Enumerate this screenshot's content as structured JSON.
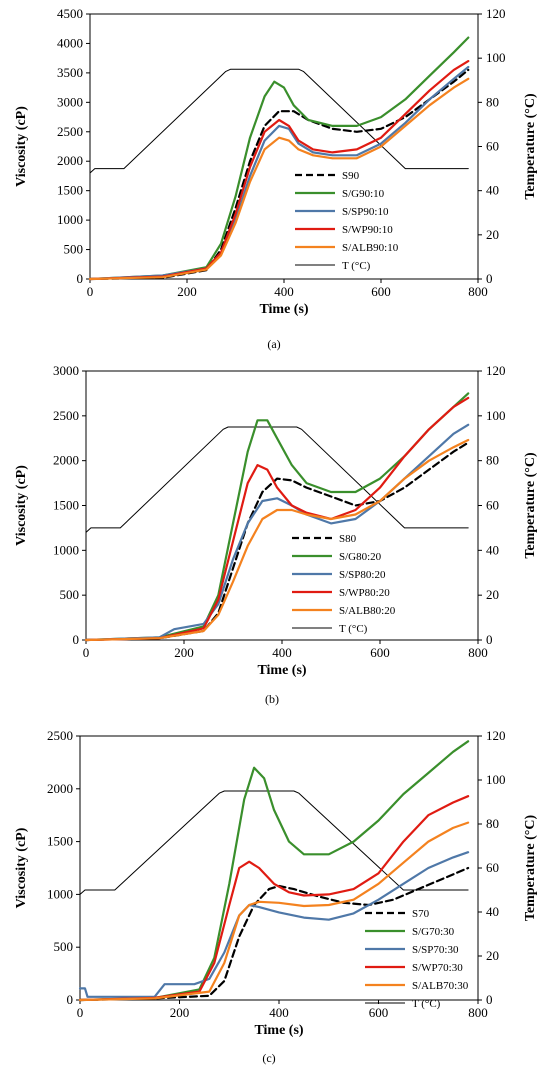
{
  "figure": {
    "charts": [
      {
        "panel_label": "(a)",
        "xlabel": "Time (s)",
        "ylabel": "Viscosity (cP)",
        "y2label": "Temperature (°C)"
      },
      {
        "panel_label": "(b)",
        "xlabel": "Time (s)",
        "ylabel": "Viscosity (cP)",
        "y2label": "Temperature (°C)"
      },
      {
        "panel_label": "(c)",
        "xlabel": "Time (s)",
        "ylabel": "Viscosity (cP)",
        "y2label": "Temperature (°C)"
      }
    ]
  },
  "chart_data": [
    {
      "type": "line",
      "panel_label": "(a)",
      "title": "",
      "xlabel": "Time (s)",
      "ylabel": "Viscosity (cP)",
      "y2label": "Temperature (°C)",
      "xlim": [
        0,
        800
      ],
      "ylim": [
        0,
        4500
      ],
      "y2lim": [
        0,
        120
      ],
      "xticks": [
        0,
        200,
        400,
        600,
        800
      ],
      "yticks": [
        0,
        500,
        1000,
        1500,
        2000,
        2500,
        3000,
        3500,
        4000,
        4500
      ],
      "y2ticks": [
        0,
        20,
        40,
        60,
        80,
        100,
        120
      ],
      "grid": false,
      "legend_position": "center-right",
      "series": [
        {
          "name": "S90",
          "axis": "left",
          "color": "#000000",
          "dash": true,
          "x": [
            0,
            150,
            240,
            270,
            300,
            330,
            360,
            390,
            420,
            450,
            500,
            550,
            600,
            650,
            700,
            750,
            780
          ],
          "y": [
            0,
            20,
            150,
            500,
            1200,
            2000,
            2600,
            2850,
            2850,
            2700,
            2550,
            2500,
            2550,
            2750,
            3050,
            3350,
            3550
          ]
        },
        {
          "name": "S/G90:10",
          "axis": "left",
          "color": "#3a8f2c",
          "dash": false,
          "x": [
            0,
            150,
            240,
            270,
            300,
            330,
            360,
            380,
            400,
            420,
            450,
            500,
            550,
            600,
            650,
            700,
            750,
            780
          ],
          "y": [
            0,
            60,
            200,
            600,
            1400,
            2400,
            3100,
            3350,
            3250,
            2950,
            2700,
            2600,
            2600,
            2750,
            3050,
            3450,
            3850,
            4100
          ]
        },
        {
          "name": "S/SP90:10",
          "axis": "left",
          "color": "#4f78a8",
          "dash": false,
          "x": [
            0,
            150,
            240,
            270,
            300,
            330,
            360,
            390,
            410,
            430,
            460,
            500,
            550,
            600,
            650,
            700,
            750,
            780
          ],
          "y": [
            0,
            60,
            180,
            420,
            1000,
            1750,
            2350,
            2600,
            2550,
            2300,
            2150,
            2100,
            2100,
            2300,
            2650,
            3050,
            3400,
            3600
          ]
        },
        {
          "name": "S/WP90:10",
          "axis": "left",
          "color": "#e01b12",
          "dash": false,
          "x": [
            0,
            150,
            240,
            270,
            300,
            330,
            360,
            390,
            410,
            430,
            460,
            500,
            550,
            600,
            650,
            700,
            750,
            780
          ],
          "y": [
            0,
            40,
            180,
            450,
            1100,
            1900,
            2500,
            2700,
            2600,
            2350,
            2200,
            2150,
            2200,
            2400,
            2800,
            3200,
            3550,
            3700
          ]
        },
        {
          "name": "S/ALB90:10",
          "axis": "left",
          "color": "#f4821f",
          "dash": false,
          "x": [
            0,
            150,
            240,
            270,
            300,
            330,
            360,
            390,
            410,
            430,
            460,
            500,
            550,
            600,
            650,
            700,
            750,
            780
          ],
          "y": [
            0,
            30,
            160,
            400,
            950,
            1650,
            2200,
            2400,
            2350,
            2200,
            2100,
            2050,
            2050,
            2250,
            2600,
            2950,
            3250,
            3400
          ]
        },
        {
          "name": "T (°C)",
          "axis": "right",
          "color": "#000000",
          "dash": false,
          "x": [
            0,
            10,
            70,
            280,
            290,
            430,
            440,
            650,
            780
          ],
          "y": [
            48,
            50,
            50,
            94,
            95,
            95,
            94,
            50,
            50
          ]
        }
      ]
    },
    {
      "type": "line",
      "panel_label": "(b)",
      "title": "",
      "xlabel": "Time (s)",
      "ylabel": "Viscosity (cP)",
      "y2label": "Temperature (°C)",
      "xlim": [
        0,
        800
      ],
      "ylim": [
        0,
        3000
      ],
      "y2lim": [
        0,
        120
      ],
      "xticks": [
        0,
        200,
        400,
        600,
        800
      ],
      "yticks": [
        0,
        500,
        1000,
        1500,
        2000,
        2500,
        3000
      ],
      "y2ticks": [
        0,
        20,
        40,
        60,
        80,
        100,
        120
      ],
      "grid": false,
      "legend_position": "center-right",
      "series": [
        {
          "name": "S80",
          "axis": "left",
          "color": "#000000",
          "dash": true,
          "x": [
            0,
            150,
            240,
            270,
            300,
            330,
            360,
            390,
            420,
            450,
            500,
            550,
            600,
            650,
            700,
            750,
            780
          ],
          "y": [
            0,
            20,
            100,
            300,
            800,
            1300,
            1650,
            1800,
            1780,
            1700,
            1600,
            1500,
            1550,
            1700,
            1900,
            2100,
            2200
          ]
        },
        {
          "name": "S/G80:20",
          "axis": "left",
          "color": "#3a8f2c",
          "dash": false,
          "x": [
            0,
            150,
            240,
            270,
            300,
            330,
            350,
            370,
            390,
            420,
            450,
            500,
            550,
            600,
            650,
            700,
            750,
            780
          ],
          "y": [
            0,
            30,
            150,
            500,
            1300,
            2100,
            2450,
            2450,
            2250,
            1950,
            1750,
            1650,
            1650,
            1800,
            2050,
            2350,
            2600,
            2750
          ]
        },
        {
          "name": "S/SP80:20",
          "axis": "left",
          "color": "#4f78a8",
          "dash": false,
          "x": [
            0,
            150,
            180,
            240,
            270,
            300,
            330,
            360,
            390,
            420,
            450,
            500,
            550,
            600,
            650,
            700,
            750,
            780
          ],
          "y": [
            0,
            30,
            120,
            180,
            400,
            900,
            1300,
            1550,
            1580,
            1500,
            1400,
            1300,
            1350,
            1550,
            1800,
            2050,
            2300,
            2400
          ]
        },
        {
          "name": "S/WP80:20",
          "axis": "left",
          "color": "#e01b12",
          "dash": false,
          "x": [
            0,
            150,
            240,
            270,
            300,
            330,
            350,
            370,
            390,
            420,
            450,
            500,
            550,
            600,
            650,
            700,
            750,
            780
          ],
          "y": [
            0,
            20,
            130,
            450,
            1100,
            1750,
            1950,
            1900,
            1700,
            1500,
            1420,
            1350,
            1450,
            1700,
            2050,
            2350,
            2600,
            2700
          ]
        },
        {
          "name": "S/ALB80:20",
          "axis": "left",
          "color": "#f4821f",
          "dash": false,
          "x": [
            0,
            150,
            240,
            270,
            300,
            330,
            360,
            390,
            420,
            450,
            500,
            550,
            600,
            650,
            700,
            750,
            780
          ],
          "y": [
            0,
            20,
            100,
            280,
            650,
            1050,
            1350,
            1450,
            1450,
            1400,
            1350,
            1400,
            1550,
            1800,
            2000,
            2150,
            2230
          ]
        },
        {
          "name": "T (°C)",
          "axis": "right",
          "color": "#000000",
          "dash": false,
          "x": [
            0,
            10,
            70,
            280,
            290,
            430,
            440,
            650,
            780
          ],
          "y": [
            48,
            50,
            50,
            94,
            95,
            95,
            94,
            50,
            50
          ]
        }
      ]
    },
    {
      "type": "line",
      "panel_label": "(c)",
      "title": "",
      "xlabel": "Time (s)",
      "ylabel": "Viscosity (cP)",
      "y2label": "Temperature (°C)",
      "xlim": [
        0,
        800
      ],
      "ylim": [
        0,
        2500
      ],
      "y2lim": [
        0,
        120
      ],
      "xticks": [
        0,
        200,
        400,
        600,
        800
      ],
      "yticks": [
        0,
        500,
        1000,
        1500,
        2000,
        2500
      ],
      "y2ticks": [
        0,
        20,
        40,
        60,
        80,
        100,
        120
      ],
      "grid": false,
      "legend_position": "bottom-right",
      "series": [
        {
          "name": "S70",
          "axis": "left",
          "color": "#000000",
          "dash": true,
          "x": [
            0,
            150,
            260,
            290,
            320,
            350,
            380,
            400,
            430,
            480,
            530,
            580,
            630,
            680,
            730,
            780
          ],
          "y": [
            0,
            15,
            40,
            180,
            600,
            900,
            1050,
            1080,
            1050,
            980,
            920,
            900,
            950,
            1050,
            1150,
            1250
          ]
        },
        {
          "name": "S/G70:30",
          "axis": "left",
          "color": "#3a8f2c",
          "dash": false,
          "x": [
            0,
            150,
            240,
            270,
            300,
            330,
            350,
            370,
            390,
            420,
            450,
            500,
            550,
            600,
            650,
            700,
            750,
            780
          ],
          "y": [
            0,
            20,
            100,
            400,
            1100,
            1900,
            2200,
            2100,
            1800,
            1500,
            1380,
            1380,
            1500,
            1700,
            1950,
            2150,
            2350,
            2450
          ]
        },
        {
          "name": "S/SP70:30",
          "axis": "left",
          "color": "#4f78a8",
          "dash": false,
          "x": [
            0,
            10,
            15,
            150,
            170,
            230,
            260,
            290,
            320,
            340,
            360,
            400,
            450,
            500,
            550,
            600,
            650,
            700,
            750,
            780
          ],
          "y": [
            110,
            110,
            30,
            30,
            150,
            150,
            200,
            450,
            800,
            900,
            880,
            830,
            780,
            760,
            820,
            950,
            1100,
            1250,
            1350,
            1400
          ]
        },
        {
          "name": "S/WP70:30",
          "axis": "left",
          "color": "#e01b12",
          "dash": false,
          "x": [
            0,
            150,
            240,
            270,
            300,
            320,
            340,
            360,
            390,
            420,
            450,
            500,
            550,
            600,
            650,
            700,
            750,
            780
          ],
          "y": [
            0,
            20,
            80,
            350,
            900,
            1250,
            1310,
            1250,
            1100,
            1020,
            990,
            1000,
            1050,
            1200,
            1500,
            1750,
            1870,
            1930
          ]
        },
        {
          "name": "S/ALB70:30",
          "axis": "left",
          "color": "#f4821f",
          "dash": false,
          "x": [
            0,
            150,
            260,
            290,
            320,
            340,
            360,
            400,
            450,
            500,
            550,
            600,
            650,
            700,
            750,
            780
          ],
          "y": [
            0,
            15,
            80,
            350,
            800,
            900,
            930,
            920,
            890,
            900,
            950,
            1100,
            1300,
            1500,
            1630,
            1680
          ]
        },
        {
          "name": "T (°C)",
          "axis": "right",
          "color": "#000000",
          "dash": false,
          "x": [
            0,
            10,
            70,
            280,
            290,
            430,
            440,
            650,
            780
          ],
          "y": [
            48,
            50,
            50,
            94,
            95,
            95,
            94,
            50,
            50
          ]
        }
      ]
    }
  ]
}
